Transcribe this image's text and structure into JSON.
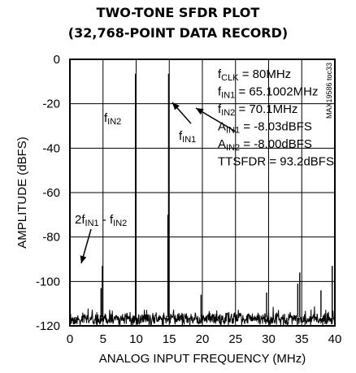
{
  "chart_data": {
    "type": "line",
    "title": "TWO-TONE SFDR PLOT",
    "subtitle": "(32,768-POINT DATA RECORD)",
    "xlabel": "ANALOG INPUT FREQUENCY (MHz)",
    "ylabel": "AMPLITUDE (dBFS)",
    "xlim": [
      0,
      40
    ],
    "ylim": [
      -120,
      0
    ],
    "xticks": [
      "0",
      "5",
      "10",
      "15",
      "20",
      "25",
      "30",
      "35",
      "40"
    ],
    "yticks": [
      "0",
      "-20",
      "-40",
      "-60",
      "-80",
      "-100",
      "-120"
    ],
    "grid": true,
    "code_label": "MAX19586 toc33",
    "info_lines": [
      {
        "base": "f",
        "sub": "CLK",
        "rest": " = 80MHz"
      },
      {
        "base": "f",
        "sub": "IN1",
        "rest": " = 65.1002MHz"
      },
      {
        "base": "f",
        "sub": "IN2",
        "rest": " = 70.1MHz"
      },
      {
        "base": "A",
        "sub": "IN1",
        "rest": " = -8.03dBFS"
      },
      {
        "base": "A",
        "sub": "IN2",
        "rest": " = -8.00dBFS"
      },
      {
        "base": "TTSFDR = 93.2dBFS",
        "sub": "",
        "rest": ""
      }
    ],
    "annotations": {
      "fin2": {
        "base": "f",
        "sub": "IN2"
      },
      "fin1": {
        "base": "f",
        "sub": "IN1"
      },
      "imd": {
        "p1": "2f",
        "s1": "IN1",
        "p2": " - f",
        "s2": "IN2"
      }
    },
    "noise_floor": -116,
    "peaks": [
      {
        "x": 9.9,
        "y": -6.5
      },
      {
        "x": 14.9,
        "y": -6.5
      },
      {
        "x": 14.8,
        "y": -70
      },
      {
        "x": 4.9,
        "y": -93
      },
      {
        "x": 4.7,
        "y": -103
      },
      {
        "x": 19.8,
        "y": -106
      },
      {
        "x": 29.7,
        "y": -105
      },
      {
        "x": 34.7,
        "y": -96
      },
      {
        "x": 34.4,
        "y": -101
      },
      {
        "x": 37.9,
        "y": -104
      },
      {
        "x": 39.6,
        "y": -93
      }
    ]
  }
}
